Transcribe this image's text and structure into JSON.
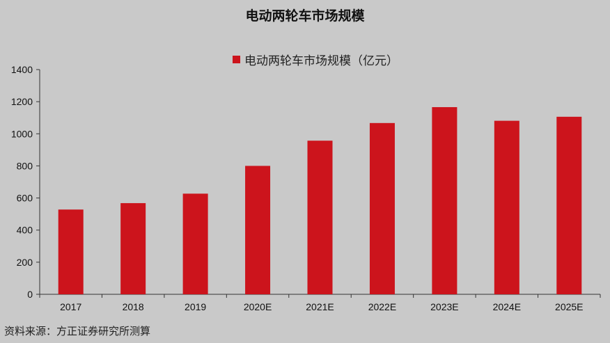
{
  "chart_data": {
    "type": "bar",
    "title": "电动两轮车市场规模",
    "categories": [
      "2017",
      "2018",
      "2019",
      "2020E",
      "2021E",
      "2022E",
      "2023E",
      "2024E",
      "2025E"
    ],
    "series": [
      {
        "name": "电动两轮车市场规模（亿元）",
        "values": [
          528,
          568,
          627,
          800,
          957,
          1067,
          1166,
          1081,
          1106
        ]
      }
    ],
    "ylim": [
      0,
      1400
    ],
    "yticks": [
      0,
      200,
      400,
      600,
      800,
      1000,
      1200,
      1400
    ],
    "xlabel": "",
    "ylabel": "",
    "grid": false,
    "legend_position": "top-center",
    "bar_color": "#cc141c"
  },
  "source_note": "资料来源：方正证券研究所测算"
}
